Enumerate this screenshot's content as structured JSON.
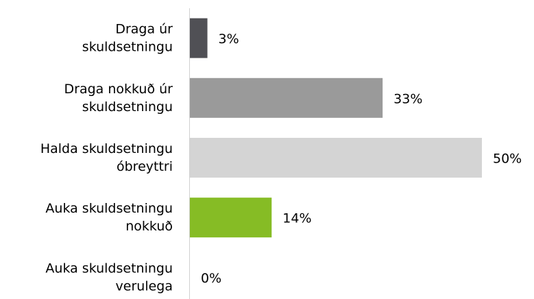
{
  "chart_data": {
    "type": "bar",
    "orientation": "horizontal",
    "categories": [
      [
        "Draga úr",
        "skuldsetningu"
      ],
      [
        "Draga nokkuð úr",
        "skuldsetningu"
      ],
      [
        "Halda skuldsetningu",
        "óbreyttri"
      ],
      [
        "Auka skuldsetningu",
        "nokkuð"
      ],
      [
        "Auka skuldsetningu",
        "verulega"
      ]
    ],
    "values": [
      3,
      33,
      50,
      14,
      0
    ],
    "value_labels": [
      "3%",
      "33%",
      "50%",
      "14%",
      "0%"
    ],
    "colors": [
      "#505055",
      "#9a9a9a",
      "#d4d4d4",
      "#86bc25",
      "#2e6b1f"
    ]
  }
}
